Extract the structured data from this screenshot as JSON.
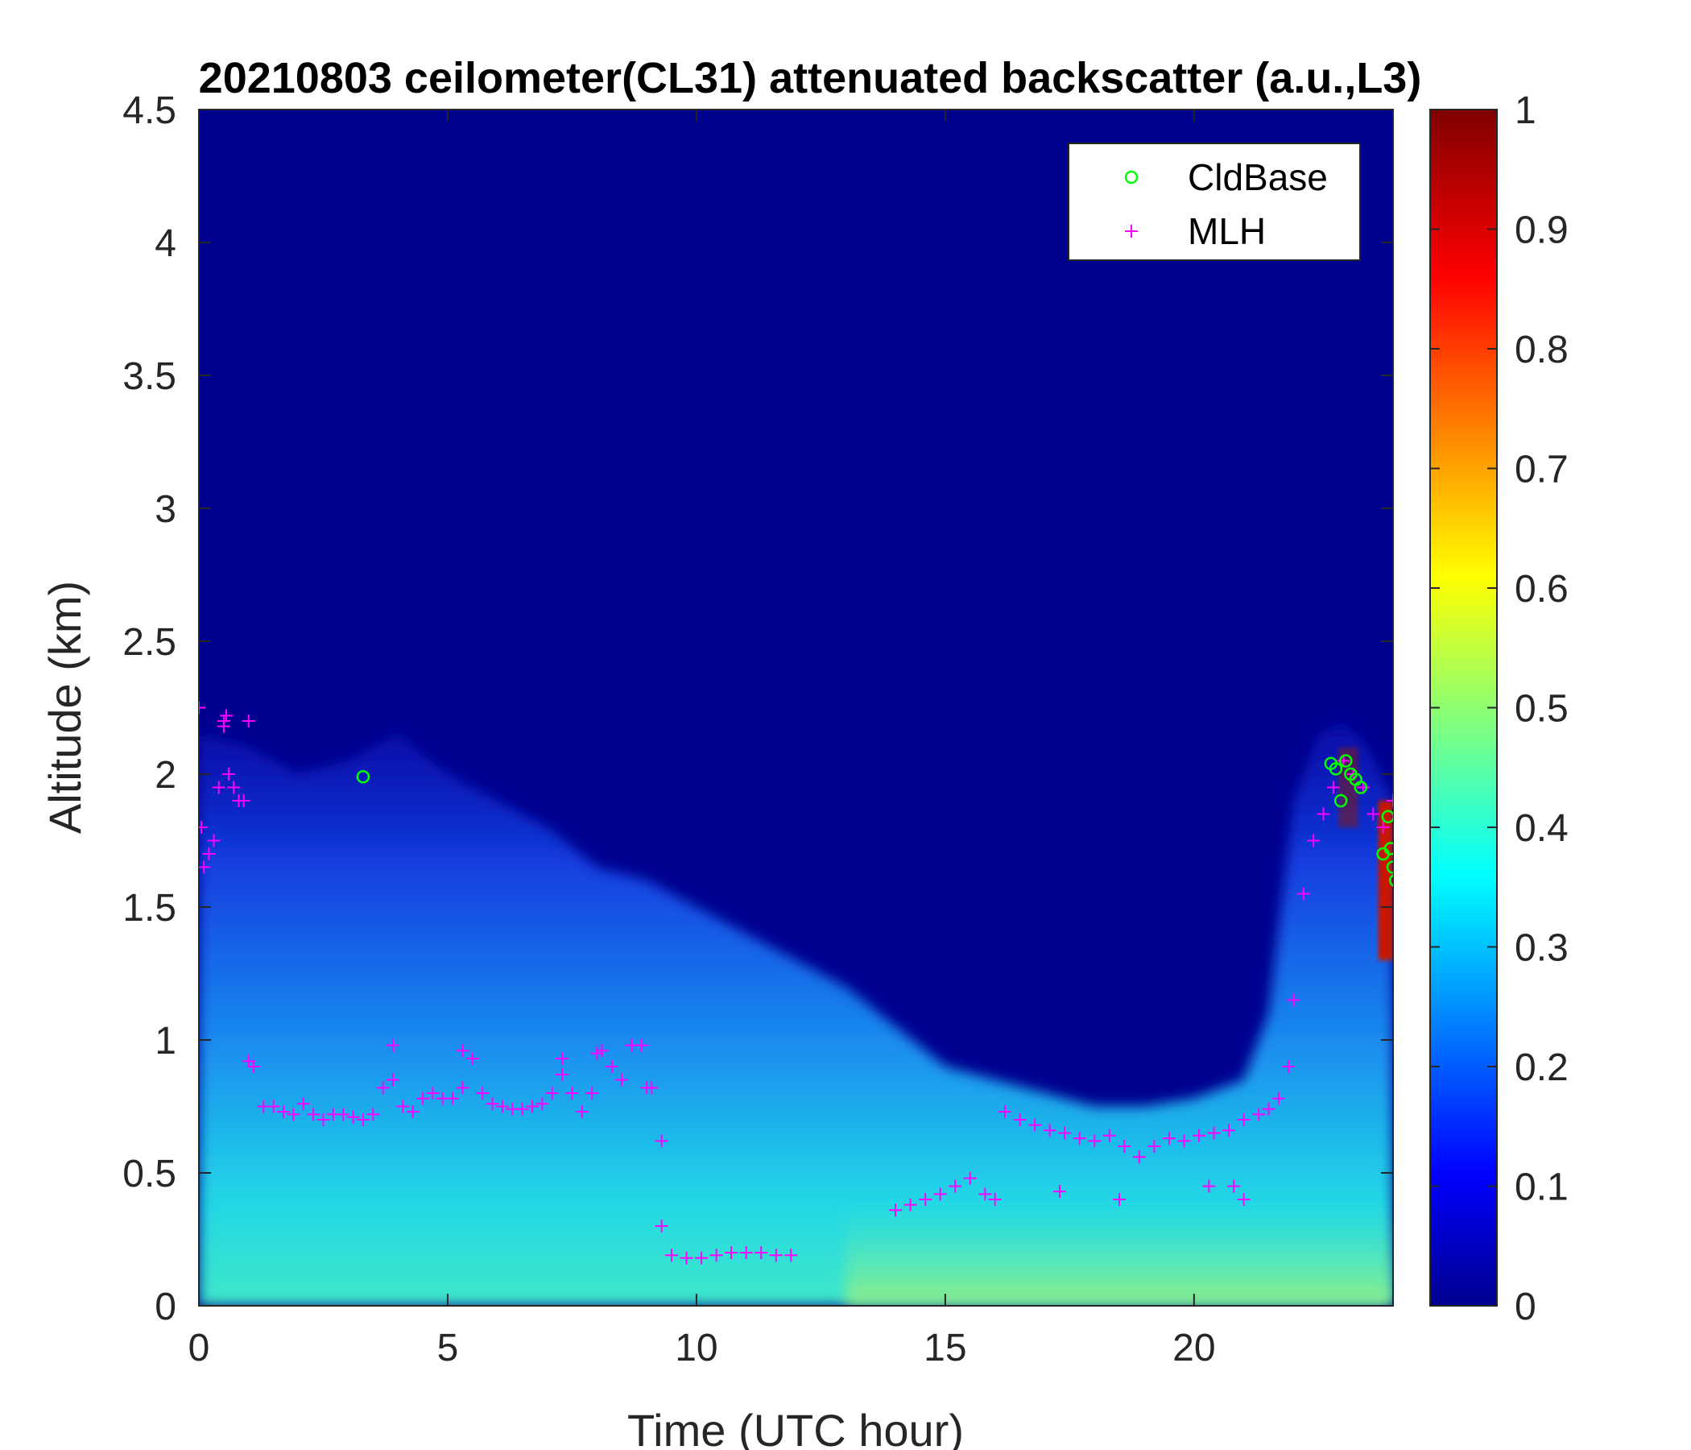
{
  "chart_data": {
    "type": "heatmap",
    "title": "20210803 ceilometer(CL31) attenuated backscatter (a.u.,L3)",
    "xlabel": "Time (UTC hour)",
    "ylabel": "Altitude (km)",
    "xlim": [
      0,
      24
    ],
    "ylim": [
      0,
      4.5
    ],
    "xticks": [
      "0",
      "5",
      "10",
      "15",
      "20"
    ],
    "xtick_values": [
      0,
      5,
      10,
      15,
      20
    ],
    "yticks": [
      "0",
      "0.5",
      "1",
      "1.5",
      "2",
      "2.5",
      "3",
      "3.5",
      "4",
      "4.5"
    ],
    "ytick_values": [
      0,
      0.5,
      1,
      1.5,
      2,
      2.5,
      3,
      3.5,
      4,
      4.5
    ],
    "colorbar": {
      "colormap": "jet",
      "range": [
        0,
        1
      ],
      "ticks": [
        "0",
        "0.1",
        "0.2",
        "0.3",
        "0.4",
        "0.5",
        "0.6",
        "0.7",
        "0.8",
        "0.9",
        "1"
      ],
      "tick_values": [
        0,
        0.1,
        0.2,
        0.3,
        0.4,
        0.5,
        0.6,
        0.7,
        0.8,
        0.9,
        1
      ]
    },
    "legend": {
      "placement": "top-right",
      "entries": [
        {
          "label": "CldBase",
          "marker": "circle",
          "color": "#00ff00"
        },
        {
          "label": "MLH",
          "marker": "plus",
          "color": "#ff00ff"
        }
      ]
    },
    "boundary_layer_top_km": {
      "x": [
        0,
        1,
        2,
        3,
        4,
        5,
        6,
        7,
        8,
        9,
        10,
        11,
        12,
        13,
        14,
        15,
        16,
        17,
        18,
        19,
        20,
        21,
        21.5,
        22,
        22.5,
        23,
        23.5,
        24
      ],
      "y": [
        2.15,
        2.1,
        2.0,
        2.05,
        2.15,
        2.0,
        1.9,
        1.8,
        1.65,
        1.6,
        1.5,
        1.4,
        1.3,
        1.2,
        1.05,
        0.9,
        0.85,
        0.8,
        0.75,
        0.75,
        0.78,
        0.85,
        1.1,
        1.9,
        2.15,
        2.2,
        2.1,
        1.9
      ]
    },
    "series": [
      {
        "name": "MLH",
        "marker": "plus",
        "color": "#ff00ff",
        "x": [
          0,
          0.1,
          0.2,
          0.3,
          0.4,
          0.5,
          0.6,
          0.7,
          0.8,
          0.9,
          1.0,
          1.1,
          1.3,
          1.5,
          1.7,
          1.9,
          2.1,
          2.3,
          2.5,
          2.7,
          2.9,
          3.1,
          3.3,
          3.5,
          3.7,
          3.9,
          4.1,
          4.3,
          4.5,
          4.7,
          4.9,
          5.1,
          5.3,
          5.5,
          5.7,
          5.9,
          6.1,
          6.3,
          6.5,
          6.7,
          6.9,
          7.1,
          7.3,
          7.5,
          7.7,
          7.9,
          8.1,
          8.3,
          8.5,
          8.7,
          8.9,
          9.1,
          9.3,
          9.5,
          9.8,
          10.1,
          10.4,
          10.7,
          11.0,
          11.3,
          11.6,
          11.9,
          14.0,
          14.3,
          14.6,
          14.9,
          15.2,
          15.5,
          15.8,
          16.0,
          16.2,
          16.5,
          16.8,
          17.1,
          17.4,
          17.7,
          18.0,
          18.3,
          18.6,
          18.9,
          19.2,
          19.5,
          19.8,
          20.1,
          20.4,
          20.7,
          21.0,
          21.3,
          21.5,
          21.7,
          21.9,
          22.0,
          22.2,
          22.4,
          22.6,
          22.8,
          23.0,
          23.2,
          23.4,
          23.6,
          23.8,
          24.0,
          0.05,
          0.5,
          0.55,
          1.0,
          3.9,
          5.3,
          7.3,
          8.0,
          9.0,
          9.3,
          17.3,
          18.5,
          20.3,
          20.8,
          21.0
        ],
        "y": [
          2.25,
          1.65,
          1.7,
          1.75,
          1.95,
          2.2,
          2.0,
          1.95,
          1.9,
          1.9,
          2.2,
          0.9,
          0.75,
          0.75,
          0.73,
          0.72,
          0.76,
          0.72,
          0.7,
          0.72,
          0.72,
          0.71,
          0.7,
          0.72,
          0.82,
          0.85,
          0.75,
          0.73,
          0.78,
          0.8,
          0.78,
          0.78,
          0.82,
          0.93,
          0.8,
          0.76,
          0.75,
          0.74,
          0.74,
          0.75,
          0.76,
          0.8,
          0.87,
          0.8,
          0.73,
          0.8,
          0.96,
          0.9,
          0.85,
          0.98,
          0.98,
          0.82,
          0.62,
          0.19,
          0.18,
          0.18,
          0.19,
          0.2,
          0.2,
          0.2,
          0.19,
          0.19,
          0.36,
          0.38,
          0.4,
          0.42,
          0.45,
          0.48,
          0.42,
          0.4,
          0.73,
          0.7,
          0.68,
          0.66,
          0.65,
          0.63,
          0.62,
          0.64,
          0.6,
          0.56,
          0.6,
          0.63,
          0.62,
          0.64,
          0.65,
          0.66,
          0.7,
          0.72,
          0.74,
          0.78,
          0.9,
          1.15,
          1.55,
          1.75,
          1.85,
          1.95,
          2.05,
          2.0,
          1.95,
          1.85,
          1.8,
          1.9,
          1.8,
          2.18,
          2.22,
          0.92,
          0.98,
          0.96,
          0.93,
          0.95,
          0.82,
          0.3,
          0.43,
          0.4,
          0.45,
          0.45,
          0.4
        ]
      },
      {
        "name": "CldBase",
        "marker": "circle",
        "color": "#00ff00",
        "x": [
          3.3,
          22.75,
          22.85,
          22.95,
          23.05,
          23.15,
          23.25,
          23.35,
          23.8,
          23.9,
          23.95,
          24.0,
          24.05
        ],
        "y": [
          1.99,
          2.04,
          2.02,
          1.9,
          2.05,
          2.0,
          1.98,
          1.95,
          1.7,
          1.84,
          1.72,
          1.65,
          1.6
        ]
      }
    ]
  }
}
